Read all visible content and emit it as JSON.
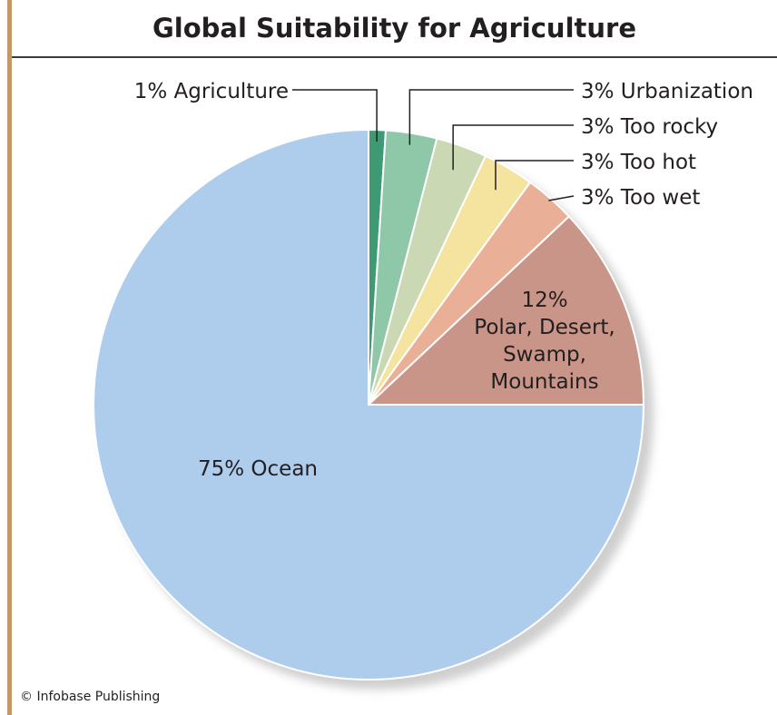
{
  "colors": {
    "border": "#c39a67",
    "shadow": "#d2d2d2"
  },
  "chart_data": {
    "type": "pie",
    "title": "Global Suitability for Agriculture",
    "start_angle": "12 o'clock, clockwise",
    "slices": [
      {
        "name": "Agriculture",
        "value": 1,
        "label": "1% Agriculture",
        "color": "#3e9a75"
      },
      {
        "name": "Urbanization",
        "value": 3,
        "label": "3% Urbanization",
        "color": "#8ec8a9"
      },
      {
        "name": "Too rocky",
        "value": 3,
        "label": "3% Too rocky",
        "color": "#cbd8b4"
      },
      {
        "name": "Too hot",
        "value": 3,
        "label": "3% Too hot",
        "color": "#f5e3a0"
      },
      {
        "name": "Too wet",
        "value": 3,
        "label": "3% Too wet",
        "color": "#eaaf97"
      },
      {
        "name": "Polar, Desert, Swamp, Mountains",
        "value": 12,
        "label_lines": [
          "12%",
          "Polar, Desert,",
          "Swamp,",
          "Mountains"
        ],
        "color": "#c99588"
      },
      {
        "name": "Ocean",
        "value": 75,
        "label": "75% Ocean",
        "color": "#aecded"
      }
    ]
  },
  "footer": {
    "copyright": "© Infobase Publishing"
  }
}
